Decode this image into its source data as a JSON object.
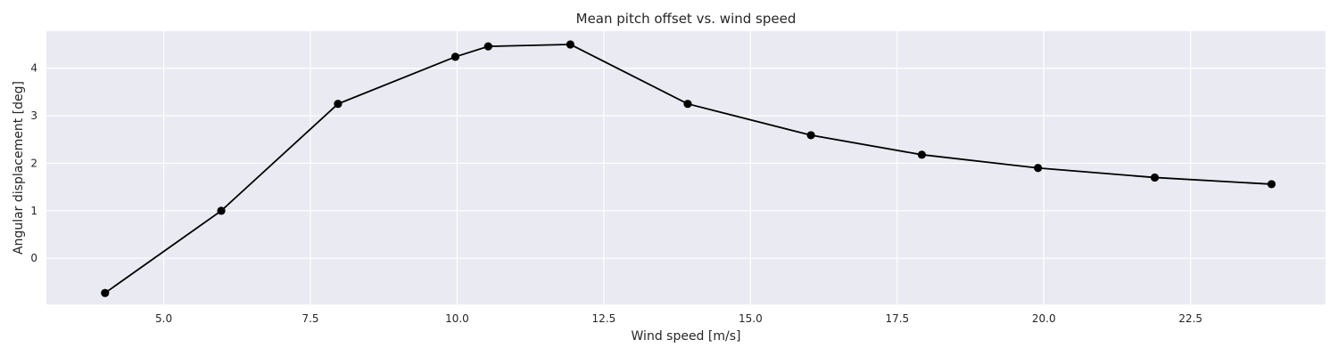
{
  "chart_data": {
    "type": "line",
    "title": "Mean pitch offset vs. wind speed",
    "xlabel": "Wind speed [m/s]",
    "ylabel": "Angular displacement [deg]",
    "xlim": [
      3.0,
      24.8
    ],
    "ylim": [
      -0.97,
      4.78
    ],
    "xticks": [
      5.0,
      7.5,
      10.0,
      12.5,
      15.0,
      17.5,
      20.0,
      22.5
    ],
    "xtick_labels": [
      "5.0",
      "7.5",
      "10.0",
      "12.5",
      "15.0",
      "17.5",
      "20.0",
      "22.5"
    ],
    "yticks": [
      0,
      1,
      2,
      3,
      4
    ],
    "ytick_labels": [
      "0",
      "1",
      "2",
      "3",
      "4"
    ],
    "grid": true,
    "background_color": "#eaeaf2",
    "grid_color": "#ffffff",
    "line_color": "#000000",
    "series": [
      {
        "x": [
          4.0,
          5.98,
          7.97,
          9.97,
          10.53,
          11.93,
          13.93,
          16.03,
          17.92,
          19.9,
          21.89,
          23.88
        ],
        "y": [
          -0.73,
          1.0,
          3.25,
          4.24,
          4.46,
          4.5,
          3.25,
          2.59,
          2.18,
          1.9,
          1.7,
          1.56
        ]
      }
    ]
  }
}
